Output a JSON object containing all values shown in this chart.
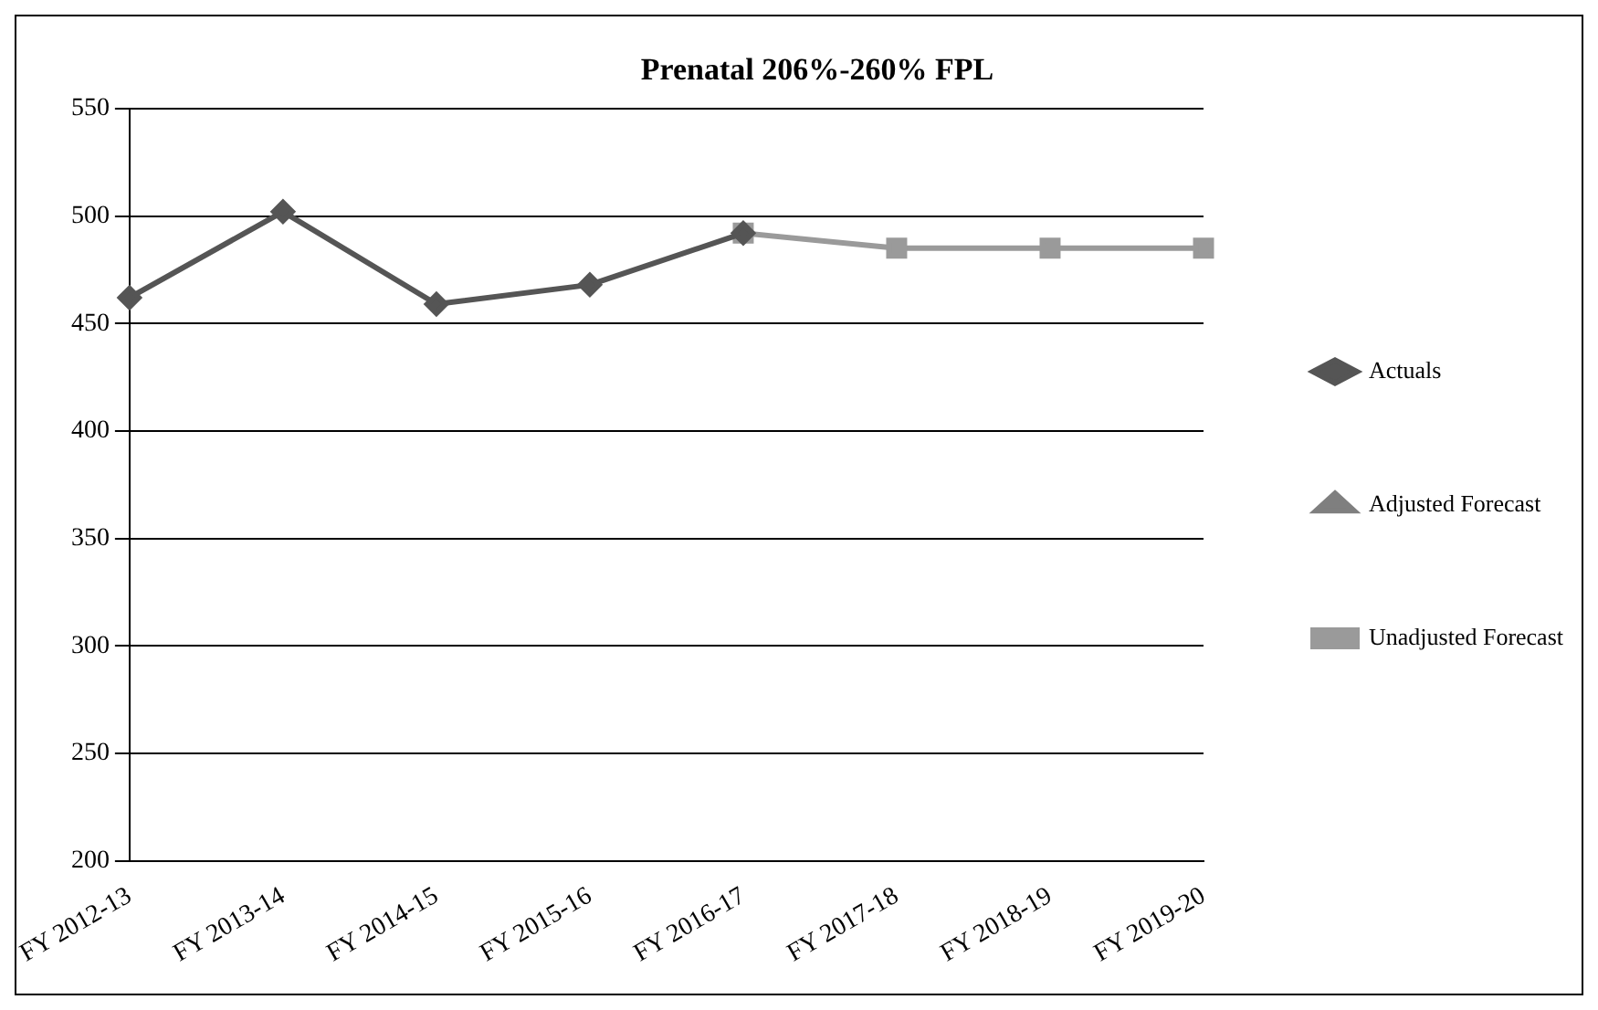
{
  "chart_data": {
    "type": "line",
    "title": "Prenatal 206%-260% FPL",
    "categories": [
      "FY 2012-13",
      "FY 2013-14",
      "FY 2014-15",
      "FY 2015-16",
      "FY 2016-17",
      "FY 2017-18",
      "FY 2018-19",
      "FY 2019-20"
    ],
    "series": [
      {
        "name": "Unadjusted Forecast",
        "color": "#9a9a9a",
        "marker": "square",
        "values": [
          null,
          null,
          null,
          null,
          492,
          485,
          485,
          485
        ]
      },
      {
        "name": "Adjusted Forecast",
        "color": "#7f7f7f",
        "marker": "triangle",
        "values": [
          null,
          null,
          null,
          null,
          null,
          null,
          null,
          null
        ]
      },
      {
        "name": "Actuals",
        "color": "#555555",
        "marker": "diamond",
        "values": [
          462,
          502,
          459,
          468,
          492,
          null,
          null,
          null
        ]
      }
    ],
    "ylim": [
      200,
      550
    ],
    "yticks": [
      200,
      250,
      300,
      350,
      400,
      450,
      500,
      550
    ],
    "grid": "y",
    "legend": "right"
  }
}
